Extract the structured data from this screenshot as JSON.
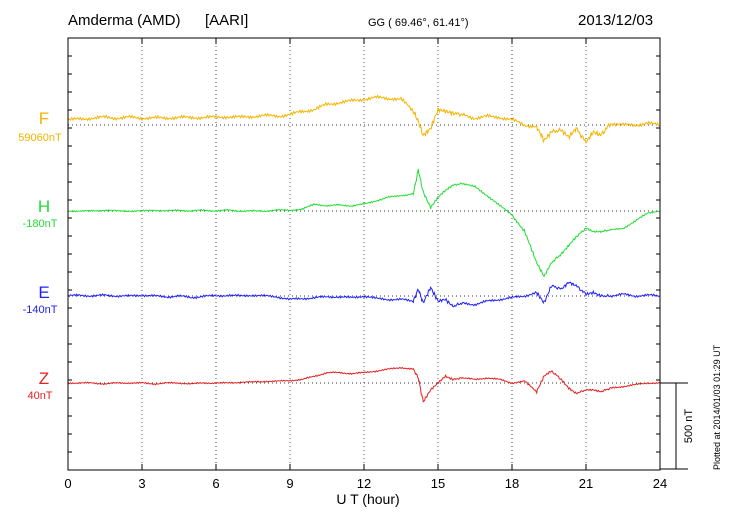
{
  "header": {
    "station": "Amderma (AMD)",
    "network": "[AARI]",
    "coords": "GG ( 69.46°,  61.41°)",
    "date": "2013/12/03"
  },
  "footer": {
    "plotted": "Plotted at 2014/01/03 01:29 UT"
  },
  "chart_data": {
    "type": "line",
    "title": "Amderma (AMD) [AARI] 2013/12/03",
    "xlabel": "U T (hour)",
    "xlim": [
      0,
      24
    ],
    "xticks": [
      0,
      3,
      6,
      9,
      12,
      15,
      18,
      21,
      24
    ],
    "scale_bar": {
      "label": "500 nT",
      "value_nT": 500
    },
    "grid": true,
    "series": [
      {
        "name": "F",
        "baseline_label": "59060nT",
        "color": "#f5b400",
        "x": [
          0,
          0.5,
          1,
          1.5,
          2,
          2.5,
          3,
          3.5,
          4,
          4.5,
          5,
          5.5,
          6,
          6.5,
          7,
          7.5,
          8,
          8.5,
          9,
          9.5,
          10,
          10.5,
          11,
          11.5,
          12,
          12.5,
          13,
          13.5,
          14,
          14.2,
          14.4,
          14.7,
          15,
          15.3,
          15.6,
          16,
          16.5,
          17,
          17.5,
          18,
          18.5,
          19,
          19.3,
          19.6,
          20,
          20.3,
          20.6,
          21,
          21.3,
          21.6,
          22,
          22.5,
          23,
          23.5,
          24
        ],
        "values": [
          30,
          35,
          40,
          45,
          40,
          45,
          40,
          42,
          40,
          45,
          42,
          45,
          45,
          48,
          45,
          50,
          55,
          52,
          60,
          80,
          90,
          120,
          130,
          140,
          150,
          160,
          155,
          150,
          80,
          20,
          -60,
          -20,
          90,
          80,
          70,
          60,
          40,
          50,
          45,
          30,
          0,
          -10,
          -90,
          -40,
          -30,
          -70,
          -20,
          -100,
          -40,
          -60,
          10,
          0,
          0,
          10,
          0
        ]
      },
      {
        "name": "H",
        "baseline_label": "-180nT",
        "color": "#22dd33",
        "x": [
          0,
          0.5,
          1,
          1.5,
          2,
          2.5,
          3,
          3.5,
          4,
          4.5,
          5,
          5.5,
          6,
          6.5,
          7,
          7.5,
          8,
          8.5,
          9,
          9.5,
          10,
          10.5,
          11,
          11.5,
          12,
          12.5,
          13,
          13.5,
          14,
          14.2,
          14.4,
          14.7,
          15,
          15.3,
          15.6,
          16,
          16.5,
          17,
          17.5,
          18,
          18.5,
          19,
          19.3,
          19.6,
          20,
          20.3,
          20.6,
          21,
          21.3,
          21.6,
          22,
          22.5,
          23,
          23.5,
          24
        ],
        "values": [
          0,
          0,
          0,
          5,
          0,
          0,
          0,
          5,
          0,
          5,
          0,
          5,
          0,
          5,
          0,
          0,
          0,
          5,
          5,
          10,
          40,
          30,
          35,
          30,
          40,
          60,
          80,
          90,
          100,
          240,
          110,
          20,
          80,
          120,
          150,
          160,
          140,
          90,
          30,
          -20,
          -120,
          -300,
          -380,
          -300,
          -250,
          -200,
          -150,
          -100,
          -120,
          -120,
          -110,
          -100,
          -60,
          -10,
          0
        ]
      },
      {
        "name": "E",
        "baseline_label": "-140nT",
        "color": "#2020ff",
        "x": [
          0,
          0.5,
          1,
          1.5,
          2,
          2.5,
          3,
          3.5,
          4,
          4.5,
          5,
          5.5,
          6,
          6.5,
          7,
          7.5,
          8,
          8.5,
          9,
          9.5,
          10,
          10.5,
          11,
          11.5,
          12,
          12.5,
          13,
          13.5,
          14,
          14.2,
          14.4,
          14.7,
          15,
          15.3,
          15.6,
          16,
          16.5,
          17,
          17.5,
          18,
          18.5,
          19,
          19.3,
          19.6,
          20,
          20.3,
          20.6,
          21,
          21.3,
          21.6,
          22,
          22.5,
          23,
          23.5,
          24
        ],
        "values": [
          0,
          5,
          0,
          5,
          0,
          0,
          5,
          0,
          -5,
          0,
          -10,
          0,
          0,
          5,
          0,
          5,
          0,
          -5,
          -20,
          -15,
          -10,
          -5,
          -5,
          -10,
          0,
          -15,
          -20,
          -20,
          -30,
          40,
          -40,
          50,
          -30,
          -20,
          -60,
          -40,
          -50,
          -30,
          -20,
          -10,
          0,
          20,
          -40,
          60,
          40,
          80,
          60,
          10,
          20,
          0,
          0,
          10,
          0,
          5,
          0
        ]
      },
      {
        "name": "Z",
        "baseline_label": "40nT",
        "color": "#e62020",
        "x": [
          0,
          0.5,
          1,
          1.5,
          2,
          2.5,
          3,
          3.5,
          4,
          4.5,
          5,
          5.5,
          6,
          6.5,
          7,
          7.5,
          8,
          8.5,
          9,
          9.5,
          10,
          10.5,
          11,
          11.5,
          12,
          12.5,
          13,
          13.5,
          14,
          14.2,
          14.4,
          14.7,
          15,
          15.3,
          15.6,
          16,
          16.5,
          17,
          17.5,
          18,
          18.5,
          19,
          19.3,
          19.6,
          20,
          20.3,
          20.6,
          21,
          21.3,
          21.6,
          22,
          22.5,
          23,
          23.5,
          24
        ],
        "values": [
          0,
          0,
          0,
          -5,
          0,
          0,
          0,
          -5,
          0,
          0,
          -5,
          0,
          0,
          0,
          5,
          5,
          10,
          10,
          15,
          20,
          40,
          60,
          60,
          55,
          60,
          70,
          80,
          90,
          80,
          30,
          -110,
          -40,
          0,
          40,
          20,
          30,
          20,
          30,
          20,
          0,
          10,
          -50,
          40,
          70,
          20,
          -30,
          -60,
          -40,
          -40,
          -50,
          -30,
          -20,
          -10,
          0,
          0
        ]
      }
    ]
  }
}
